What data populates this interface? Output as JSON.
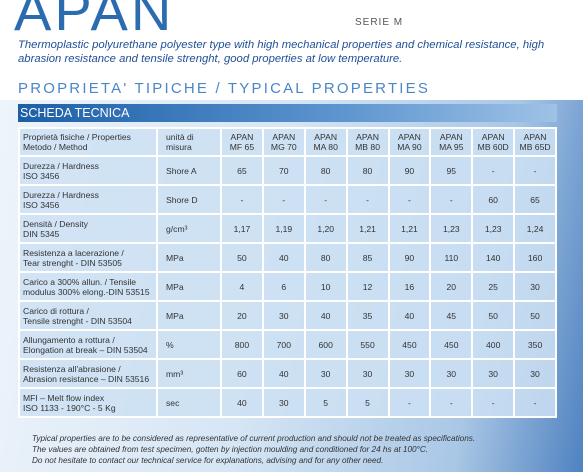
{
  "header": {
    "title": "APAN",
    "series": "SERIE M",
    "description": "Thermoplastic polyurethane polyester type with high mechanical properties and chemical resistance, high abrasion resistance and tensile strenght, good properties at low temperature.",
    "section_title": "PROPRIETA' TIPICHE / TYPICAL PROPERTIES"
  },
  "table": {
    "title": "SCHEDA TECNICA",
    "columns": [
      "Proprietà fisiche / Properties\nMetodo / Method",
      "unità di\nmisura",
      "APAN\nMF 65",
      "APAN\nMG 70",
      "APAN\nMA 80",
      "APAN\nMB 80",
      "APAN\nMA 90",
      "APAN\nMA 95",
      "APAN\nMB 60D",
      "APAN\nMB 65D"
    ],
    "rows": [
      [
        "Durezza / Hardness\nISO 3456",
        "Shore A",
        "65",
        "70",
        "80",
        "80",
        "90",
        "95",
        "-",
        "-"
      ],
      [
        "Durezza / Hardness\nISO 3456",
        "Shore D",
        "-",
        "-",
        "-",
        "-",
        "-",
        "-",
        "60",
        "65"
      ],
      [
        "Densità / Density\nDIN 5345",
        "g/cm³",
        "1,17",
        "1,19",
        "1,20",
        "1,21",
        "1,21",
        "1,23",
        "1,23",
        "1,24"
      ],
      [
        "Resistenza a lacerazione /\nTear strenght - DIN 53505",
        "MPa",
        "50",
        "40",
        "80",
        "85",
        "90",
        "110",
        "140",
        "160"
      ],
      [
        "Carico a 300% allun. / Tensile\nmodulus 300% elong.-DIN 53515",
        "MPa",
        "4",
        "6",
        "10",
        "12",
        "16",
        "20",
        "25",
        "30"
      ],
      [
        "Carico di rottura /\nTensile strenght - DIN 53504",
        "MPa",
        "20",
        "30",
        "40",
        "35",
        "40",
        "45",
        "50",
        "50"
      ],
      [
        "Allungamento a rottura /\nElongation at break – DIN 53504",
        "%",
        "800",
        "700",
        "600",
        "550",
        "450",
        "450",
        "400",
        "350"
      ],
      [
        "Resistenza all'abrasione /\nAbrasion resistance – DIN 53516",
        "mm³",
        "60",
        "40",
        "30",
        "30",
        "30",
        "30",
        "30",
        "30"
      ],
      [
        "MFI – Melt flow index\nISO 1133 - 190°C - 5 Kg",
        "sec",
        "40",
        "30",
        "5",
        "5",
        "-",
        "-",
        "-",
        "-"
      ]
    ]
  },
  "footnotes": [
    "Typical properties are to be considered as representative of current production and should not be treated as specifications.",
    "The values are obtained from test specimen, gotten by injection moulding and conditioned for 24 hs at 100°C.",
    "Do not hesitate to contact our technical service for explanations, advising and for any other need."
  ]
}
